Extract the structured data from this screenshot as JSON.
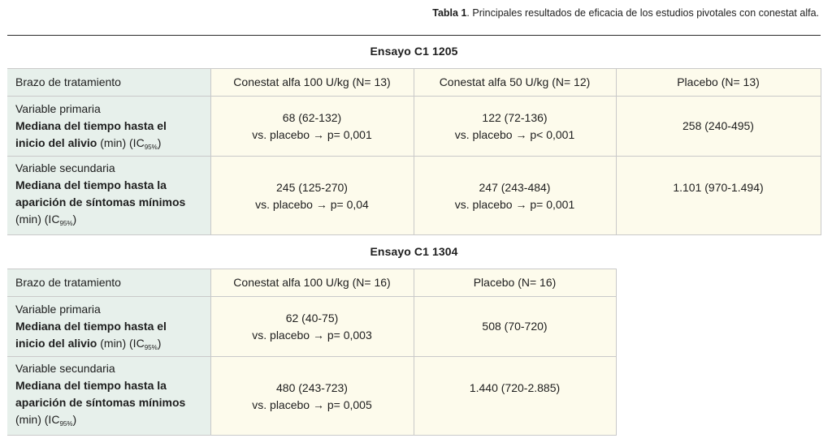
{
  "caption": {
    "label": "Tabla 1",
    "text": ". Principales resultados de eficacia de los estudios pivotales con conestat alfa."
  },
  "trial1": {
    "title": "Ensayo C1 1205",
    "arm_label": "Brazo de tratamiento",
    "arms": [
      "Conestat alfa 100 U/kg (N= 13)",
      "Conestat alfa 50 U/kg (N= 12)",
      "Placebo (N= 13)"
    ],
    "primary": {
      "label": "Variable primaria",
      "name_bold": "Mediana del tiempo hasta el inicio del alivio",
      "name_unit": " (min) (IC",
      "ci_sub": "95%",
      "ci_close": ")",
      "values": [
        {
          "median": "68 (62-132)",
          "pvalue": "vs. placebo → p= 0,001"
        },
        {
          "median": "122 (72-136)",
          "pvalue": "vs. placebo → p< 0,001"
        },
        {
          "median": "258 (240-495)",
          "pvalue": ""
        }
      ]
    },
    "secondary": {
      "label": "Variable secundaria",
      "name_bold": "Mediana del tiempo hasta la aparición de síntomas mínimos",
      "name_unit": "(min) (IC",
      "ci_sub": "95%",
      "ci_close": ")",
      "values": [
        {
          "median": "245 (125-270)",
          "pvalue": "vs. placebo → p= 0,04"
        },
        {
          "median": "247 (243-484)",
          "pvalue": "vs. placebo → p= 0,001"
        },
        {
          "median": "1.101 (970-1.494)",
          "pvalue": ""
        }
      ]
    }
  },
  "trial2": {
    "title": "Ensayo C1 1304",
    "arm_label": "Brazo de tratamiento",
    "arms": [
      "Conestat alfa 100 U/kg (N= 16)",
      "Placebo (N= 16)"
    ],
    "primary": {
      "label": "Variable primaria",
      "name_bold": "Mediana del tiempo hasta el inicio del alivio",
      "name_unit": " (min) (IC",
      "ci_sub": "95%",
      "ci_close": ")",
      "values": [
        {
          "median": "62 (40-75)",
          "pvalue": "vs. placebo → p= 0,003"
        },
        {
          "median": "508 (70-720)",
          "pvalue": ""
        }
      ]
    },
    "secondary": {
      "label": "Variable secundaria",
      "name_bold": "Mediana del tiempo hasta la aparición de síntomas mínimos",
      "name_unit": "(min) (IC",
      "ci_sub": "95%",
      "ci_close": ")",
      "values": [
        {
          "median": "480 (243-723)",
          "pvalue": "vs. placebo → p= 0,005"
        },
        {
          "median": "1.440 (720-2.885)",
          "pvalue": ""
        }
      ]
    }
  },
  "colors": {
    "label_bg": "#e7f0eb",
    "value_bg": "#fdfbec",
    "rule": "#2a2a2a"
  }
}
